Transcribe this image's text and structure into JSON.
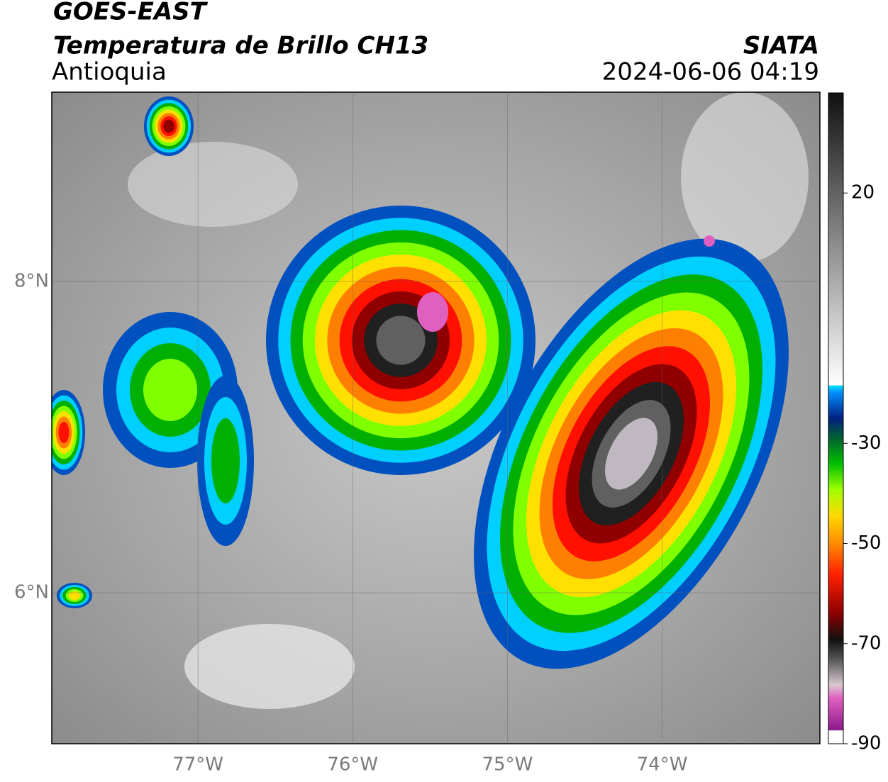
{
  "header": {
    "title": "GOES-EAST",
    "subtitle": "Temperatura de Brillo CH13",
    "region": "Antioquia",
    "source": "SIATA",
    "timestamp": "2024-06-06 04:19"
  },
  "map": {
    "xlim": [
      -77.945,
      -72.98
    ],
    "ylim": [
      5.03,
      9.216
    ],
    "lat_ticks": [
      {
        "value": 8,
        "label": "8°N"
      },
      {
        "value": 6,
        "label": "6°N"
      }
    ],
    "lon_ticks": [
      {
        "value": -77,
        "label": "77°W"
      },
      {
        "value": -76,
        "label": "76°W"
      },
      {
        "value": -75,
        "label": "75°W"
      },
      {
        "value": -74,
        "label": "74°W"
      }
    ],
    "grid": true
  },
  "colorbar": {
    "lim": [
      -90,
      40
    ],
    "ticks": [
      20,
      -30,
      -50,
      -70,
      -90
    ]
  }
}
